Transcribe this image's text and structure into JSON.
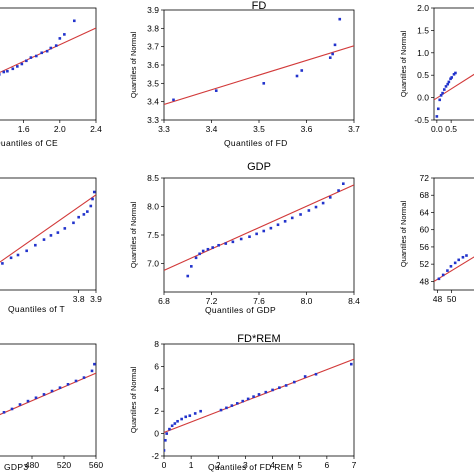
{
  "chart_data": [
    {
      "id": "ce",
      "type": "scatter",
      "title": "",
      "xlabel": "Quantiles of CE",
      "ylabel": "",
      "xlim": [
        1.25,
        2.4
      ],
      "ylim": [
        1.0,
        2.4
      ],
      "xticks": [
        "1.6",
        "2.0",
        "2.4"
      ],
      "yticks": [],
      "ref_line": [
        [
          1.25,
          1.55
        ],
        [
          2.4,
          2.15
        ]
      ],
      "points": [
        [
          1.28,
          1.55
        ],
        [
          1.33,
          1.57
        ],
        [
          1.38,
          1.6
        ],
        [
          1.42,
          1.61
        ],
        [
          1.48,
          1.64
        ],
        [
          1.53,
          1.67
        ],
        [
          1.58,
          1.7
        ],
        [
          1.63,
          1.74
        ],
        [
          1.68,
          1.78
        ],
        [
          1.74,
          1.8
        ],
        [
          1.8,
          1.84
        ],
        [
          1.86,
          1.86
        ],
        [
          1.9,
          1.9
        ],
        [
          1.96,
          1.93
        ],
        [
          2.0,
          2.02
        ],
        [
          2.05,
          2.07
        ],
        [
          2.16,
          2.24
        ]
      ]
    },
    {
      "id": "fd",
      "type": "scatter",
      "title": "FD",
      "xlabel": "Quantiles of FD",
      "ylabel": "Quantiles of Normal",
      "xlim": [
        3.3,
        3.7
      ],
      "ylim": [
        3.3,
        3.9
      ],
      "xticks": [
        "3.3",
        "3.4",
        "3.5",
        "3.6",
        "3.7"
      ],
      "yticks": [
        "3.3",
        "3.4",
        "3.5",
        "3.6",
        "3.7",
        "3.8",
        "3.9"
      ],
      "ref_line": [
        [
          3.3,
          3.385
        ],
        [
          3.7,
          3.705
        ]
      ],
      "points": [
        [
          3.32,
          3.41
        ],
        [
          3.41,
          3.46
        ],
        [
          3.51,
          3.5
        ],
        [
          3.58,
          3.54
        ],
        [
          3.59,
          3.57
        ],
        [
          3.65,
          3.64
        ],
        [
          3.655,
          3.66
        ],
        [
          3.66,
          3.71
        ],
        [
          3.67,
          3.85
        ]
      ]
    },
    {
      "id": "rem",
      "type": "scatter",
      "title": "",
      "xlabel": "",
      "ylabel": "Quantiles of Normal",
      "xlim": [
        -0.1,
        2.0
      ],
      "ylim": [
        -0.5,
        2.0
      ],
      "xticks": [
        "0.0",
        "0.5"
      ],
      "yticks": [
        "-0.5",
        "0.0",
        "0.5",
        "1.0",
        "1.5",
        "2.0"
      ],
      "ref_line": [
        [
          -0.1,
          -0.05
        ],
        [
          2.0,
          0.8
        ]
      ],
      "points": [
        [
          0.0,
          -0.42
        ],
        [
          0.05,
          -0.25
        ],
        [
          0.1,
          -0.05
        ],
        [
          0.15,
          0.05
        ],
        [
          0.2,
          0.1
        ],
        [
          0.26,
          0.18
        ],
        [
          0.32,
          0.25
        ],
        [
          0.38,
          0.3
        ],
        [
          0.42,
          0.35
        ],
        [
          0.48,
          0.42
        ],
        [
          0.52,
          0.45
        ],
        [
          0.6,
          0.52
        ],
        [
          0.65,
          0.55
        ]
      ]
    },
    {
      "id": "t",
      "type": "scatter",
      "title": "",
      "xlabel": "Quantiles of T",
      "ylabel": "",
      "xlim": [
        3.3,
        3.9
      ],
      "ylim": [
        3.3,
        4.1
      ],
      "xticks": [
        "3.8",
        "3.9"
      ],
      "yticks": [],
      "ref_line": [
        [
          3.3,
          3.46
        ],
        [
          3.9,
          3.98
        ]
      ],
      "points": [
        [
          3.32,
          3.46
        ],
        [
          3.36,
          3.49
        ],
        [
          3.41,
          3.53
        ],
        [
          3.45,
          3.55
        ],
        [
          3.5,
          3.58
        ],
        [
          3.55,
          3.62
        ],
        [
          3.6,
          3.66
        ],
        [
          3.64,
          3.69
        ],
        [
          3.68,
          3.71
        ],
        [
          3.72,
          3.74
        ],
        [
          3.77,
          3.78
        ],
        [
          3.8,
          3.82
        ],
        [
          3.83,
          3.84
        ],
        [
          3.85,
          3.86
        ],
        [
          3.87,
          3.9
        ],
        [
          3.88,
          3.95
        ],
        [
          3.89,
          4.0
        ]
      ]
    },
    {
      "id": "gdp",
      "type": "scatter",
      "title": "GDP",
      "xlabel": "Quantiles of GDP",
      "ylabel": "Quantiles of Normal",
      "xlim": [
        6.8,
        8.4
      ],
      "ylim": [
        6.5,
        8.5
      ],
      "xticks": [
        "6.8",
        "7.2",
        "7.6",
        "8.0",
        "8.4"
      ],
      "yticks": [
        "7.0",
        "7.5",
        "8.0",
        "8.5"
      ],
      "ref_line": [
        [
          6.8,
          6.88
        ],
        [
          8.4,
          8.38
        ]
      ],
      "points": [
        [
          7.0,
          6.78
        ],
        [
          7.03,
          6.95
        ],
        [
          7.07,
          7.1
        ],
        [
          7.1,
          7.17
        ],
        [
          7.13,
          7.22
        ],
        [
          7.17,
          7.25
        ],
        [
          7.21,
          7.28
        ],
        [
          7.26,
          7.32
        ],
        [
          7.32,
          7.35
        ],
        [
          7.38,
          7.38
        ],
        [
          7.45,
          7.43
        ],
        [
          7.52,
          7.47
        ],
        [
          7.58,
          7.52
        ],
        [
          7.64,
          7.57
        ],
        [
          7.7,
          7.62
        ],
        [
          7.76,
          7.68
        ],
        [
          7.82,
          7.74
        ],
        [
          7.88,
          7.8
        ],
        [
          7.95,
          7.86
        ],
        [
          8.02,
          7.93
        ],
        [
          8.08,
          7.99
        ],
        [
          8.14,
          8.06
        ],
        [
          8.2,
          8.16
        ],
        [
          8.27,
          8.28
        ],
        [
          8.31,
          8.4
        ]
      ]
    },
    {
      "id": "rem2",
      "type": "scatter",
      "title": "",
      "xlabel": "",
      "ylabel": "Quantiles of Normal",
      "xlim": [
        47.5,
        56.0
      ],
      "ylim": [
        46.0,
        72.0
      ],
      "xticks": [
        "48",
        "50"
      ],
      "yticks": [
        "48",
        "52",
        "56",
        "60",
        "64",
        "68",
        "72"
      ],
      "ref_line": [
        [
          47.5,
          48.0
        ],
        [
          56.0,
          56.5
        ]
      ],
      "points": [
        [
          48.2,
          48.6
        ],
        [
          48.8,
          49.5
        ],
        [
          49.4,
          50.5
        ],
        [
          49.9,
          51.5
        ],
        [
          50.5,
          52.3
        ],
        [
          51.0,
          53.0
        ],
        [
          51.6,
          53.6
        ],
        [
          52.1,
          54.0
        ]
      ]
    },
    {
      "id": "gdp3",
      "type": "scatter",
      "title": "",
      "xlabel": "GDP3",
      "ylabel": "",
      "xlim": [
        430,
        560
      ],
      "ylim": [
        0,
        10
      ],
      "xticks": [
        "480",
        "520",
        "560"
      ],
      "yticks": [],
      "ref_line": [
        [
          430,
          3.4
        ],
        [
          560,
          7.4
        ]
      ],
      "points": [
        [
          435,
          3.6
        ],
        [
          445,
          3.9
        ],
        [
          455,
          4.2
        ],
        [
          465,
          4.6
        ],
        [
          475,
          4.9
        ],
        [
          485,
          5.2
        ],
        [
          495,
          5.5
        ],
        [
          505,
          5.8
        ],
        [
          515,
          6.1
        ],
        [
          525,
          6.4
        ],
        [
          535,
          6.7
        ],
        [
          545,
          7.0
        ],
        [
          555,
          7.6
        ],
        [
          558,
          8.2
        ]
      ]
    },
    {
      "id": "fdrem",
      "type": "scatter",
      "title": "FD*REM",
      "xlabel": "Quantiles of FD REM",
      "ylabel": "Quantiles of Normal",
      "xlim": [
        0,
        7
      ],
      "ylim": [
        -2,
        8
      ],
      "xticks": [
        "0",
        "1",
        "2",
        "3",
        "4",
        "5",
        "6",
        "7"
      ],
      "yticks": [
        "-2",
        "0",
        "2",
        "4",
        "6",
        "8"
      ],
      "ref_line": [
        [
          0,
          0.1
        ],
        [
          7,
          6.65
        ]
      ],
      "points": [
        [
          0.0,
          -1.5
        ],
        [
          0.05,
          -0.6
        ],
        [
          0.1,
          0.0
        ],
        [
          0.2,
          0.4
        ],
        [
          0.3,
          0.7
        ],
        [
          0.4,
          0.9
        ],
        [
          0.5,
          1.1
        ],
        [
          0.65,
          1.3
        ],
        [
          0.8,
          1.5
        ],
        [
          0.95,
          1.6
        ],
        [
          1.15,
          1.8
        ],
        [
          1.35,
          2.0
        ],
        [
          2.1,
          2.1
        ],
        [
          2.3,
          2.3
        ],
        [
          2.5,
          2.5
        ],
        [
          2.7,
          2.7
        ],
        [
          2.9,
          2.9
        ],
        [
          3.1,
          3.1
        ],
        [
          3.3,
          3.3
        ],
        [
          3.5,
          3.5
        ],
        [
          3.75,
          3.7
        ],
        [
          4.0,
          3.9
        ],
        [
          4.25,
          4.1
        ],
        [
          4.5,
          4.3
        ],
        [
          4.8,
          4.6
        ],
        [
          5.2,
          5.1
        ],
        [
          5.6,
          5.3
        ],
        [
          6.9,
          6.2
        ]
      ]
    }
  ]
}
